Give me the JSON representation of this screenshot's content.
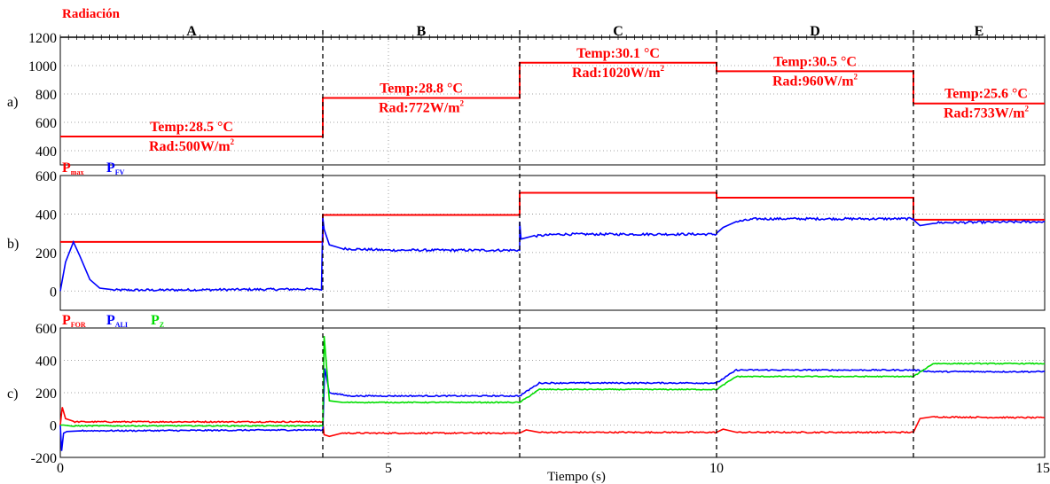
{
  "chart_data": [
    {
      "type": "line",
      "panel_label": "a)",
      "title": "Radiación",
      "ylim": [
        300,
        1200
      ],
      "yticks": [
        400,
        600,
        800,
        1000,
        1200
      ],
      "xlim": [
        0,
        15
      ],
      "grid": true,
      "colors": {
        "series": "#ff0000"
      },
      "regions": [
        {
          "label": "A",
          "start": 0,
          "end": 4,
          "temp": "Temp:28.5 °C",
          "rad": "Rad:500W/m",
          "rad_sup": "2"
        },
        {
          "label": "B",
          "start": 4,
          "end": 7,
          "temp": "Temp:28.8 °C",
          "rad": "Rad:772W/m",
          "rad_sup": "2"
        },
        {
          "label": "C",
          "start": 7,
          "end": 10,
          "temp": "Temp:30.1 °C",
          "rad": "Rad:1020W/m",
          "rad_sup": "2"
        },
        {
          "label": "D",
          "start": 10,
          "end": 13,
          "temp": "Temp:30.5 °C",
          "rad": "Rad:960W/m",
          "rad_sup": "2"
        },
        {
          "label": "E",
          "start": 13,
          "end": 15,
          "temp": "Temp:25.6 °C",
          "rad": "Rad:733W/m",
          "rad_sup": "2"
        }
      ],
      "series": [
        {
          "x": [
            0,
            4,
            4,
            7,
            7,
            10,
            10,
            13,
            13,
            15
          ],
          "y": [
            500,
            500,
            772,
            772,
            1020,
            1020,
            960,
            960,
            733,
            733
          ]
        }
      ]
    },
    {
      "type": "line",
      "panel_label": "b)",
      "ylim": [
        -100,
        600
      ],
      "yticks": [
        0,
        200,
        400,
        600
      ],
      "xlim": [
        0,
        15
      ],
      "grid": true,
      "legend": [
        {
          "main": "P",
          "sub": "max",
          "color": "#ff0000"
        },
        {
          "main": "P",
          "sub": "FV",
          "color": "#0000ff"
        }
      ],
      "series": [
        {
          "color": "#ff0000",
          "x": [
            0,
            4,
            4,
            7,
            7,
            10,
            10,
            13,
            13,
            15
          ],
          "y": [
            255,
            255,
            395,
            395,
            510,
            510,
            485,
            485,
            370,
            370
          ]
        },
        {
          "color": "#0000ff",
          "noise": 6,
          "x": [
            0,
            0.08,
            0.2,
            0.3,
            0.45,
            0.6,
            0.8,
            1.5,
            3.9,
            3.98,
            4.0,
            4.02,
            4.1,
            4.3,
            5,
            7,
            7.0,
            7.02,
            7.2,
            7.6,
            10,
            10.0,
            10.1,
            10.3,
            10.6,
            13,
            13.0,
            13.1,
            13.3,
            15
          ],
          "y": [
            0,
            150,
            255,
            180,
            60,
            15,
            5,
            5,
            10,
            5,
            380,
            320,
            240,
            220,
            212,
            212,
            360,
            270,
            285,
            295,
            295,
            300,
            330,
            360,
            375,
            375,
            370,
            340,
            355,
            360
          ]
        }
      ]
    },
    {
      "type": "line",
      "panel_label": "c)",
      "xlabel": "Tiempo (s)",
      "ylim": [
        -200,
        600
      ],
      "yticks": [
        -200,
        0,
        200,
        400,
        600
      ],
      "xlim": [
        0,
        15
      ],
      "xticks": [
        0,
        5,
        10,
        15
      ],
      "grid": true,
      "legend": [
        {
          "main": "P",
          "sub": "FOR",
          "color": "#ff0000"
        },
        {
          "main": "P",
          "sub": "ALI",
          "color": "#0000ff"
        },
        {
          "main": "P",
          "sub": "Z",
          "color": "#00dd00"
        }
      ],
      "series": [
        {
          "color": "#ff0000",
          "noise": 4,
          "x": [
            0,
            0.03,
            0.08,
            0.2,
            1,
            3.99,
            4.0,
            4.02,
            4.1,
            4.3,
            5,
            7,
            7.0,
            7.1,
            7.3,
            10,
            10.0,
            10.1,
            10.3,
            13,
            13.0,
            13.1,
            13.3,
            15
          ],
          "y": [
            0,
            110,
            40,
            20,
            20,
            20,
            20,
            -60,
            -70,
            -50,
            -50,
            -50,
            -50,
            -30,
            -45,
            -45,
            -45,
            -25,
            -45,
            -45,
            -45,
            40,
            50,
            45
          ]
        },
        {
          "color": "#0000ff",
          "noise": 4,
          "x": [
            0,
            0.02,
            0.05,
            0.1,
            0.3,
            1,
            3.99,
            4.0,
            4.03,
            4.1,
            4.4,
            5,
            7,
            7.0,
            7.3,
            10,
            10.0,
            10.3,
            13,
            13.0,
            13.3,
            15
          ],
          "y": [
            0,
            -160,
            -50,
            -40,
            -35,
            -35,
            -30,
            -30,
            350,
            200,
            180,
            180,
            180,
            180,
            260,
            260,
            260,
            340,
            340,
            340,
            330,
            330
          ]
        },
        {
          "color": "#00dd00",
          "noise": 3,
          "x": [
            0,
            0.05,
            0.2,
            1,
            3.99,
            4.0,
            4.02,
            4.1,
            4.3,
            5,
            7,
            7.0,
            7.3,
            10,
            10.0,
            10.3,
            13,
            13.0,
            13.3,
            15
          ],
          "y": [
            0,
            0,
            -5,
            -5,
            -5,
            -5,
            550,
            150,
            140,
            140,
            140,
            140,
            220,
            220,
            220,
            300,
            300,
            300,
            380,
            380
          ]
        }
      ]
    }
  ]
}
